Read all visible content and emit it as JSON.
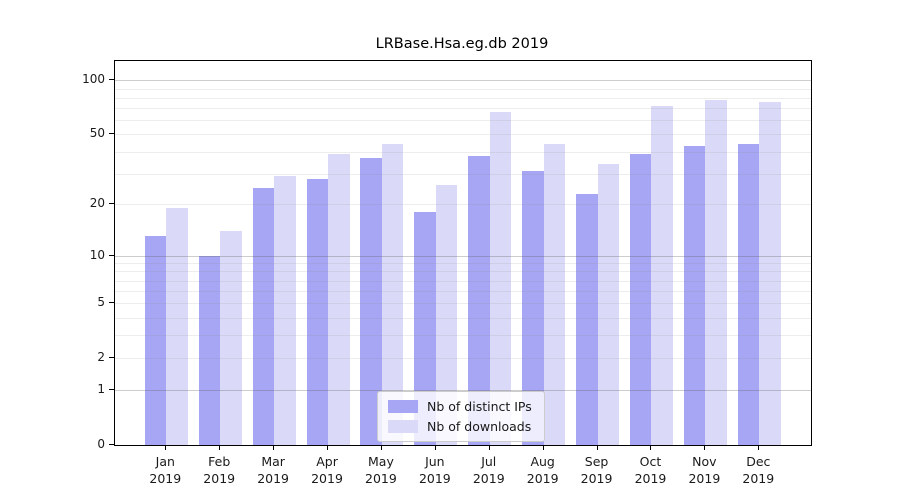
{
  "chart_data": {
    "type": "bar",
    "title": "LRBase.Hsa.eg.db 2019",
    "x_categories": [
      "Jan",
      "Feb",
      "Mar",
      "Apr",
      "May",
      "Jun",
      "Jul",
      "Aug",
      "Sep",
      "Oct",
      "Nov",
      "Dec"
    ],
    "x_year": "2019",
    "series": [
      {
        "name": "Nb of distinct IPs",
        "color": "#a6a6f4",
        "values": [
          13,
          10,
          25,
          28,
          37,
          18,
          38,
          31,
          23,
          39,
          43,
          44
        ]
      },
      {
        "name": "Nb of downloads",
        "color": "#dadaf8",
        "values": [
          19,
          14,
          29,
          39,
          44,
          26,
          67,
          44,
          34,
          72,
          78,
          76
        ]
      }
    ],
    "y_scale": "log1p",
    "y_ticks": [
      100,
      50,
      20,
      10,
      5,
      2,
      1,
      0
    ],
    "y_gridlines_major": [
      1,
      10,
      100
    ],
    "y_gridlines_minor": [
      2,
      3,
      4,
      5,
      6,
      7,
      8,
      9,
      20,
      30,
      40,
      50,
      60,
      70,
      80,
      90
    ],
    "ylim": [
      0,
      128
    ],
    "grid": "on",
    "legend_position": "lower center"
  }
}
